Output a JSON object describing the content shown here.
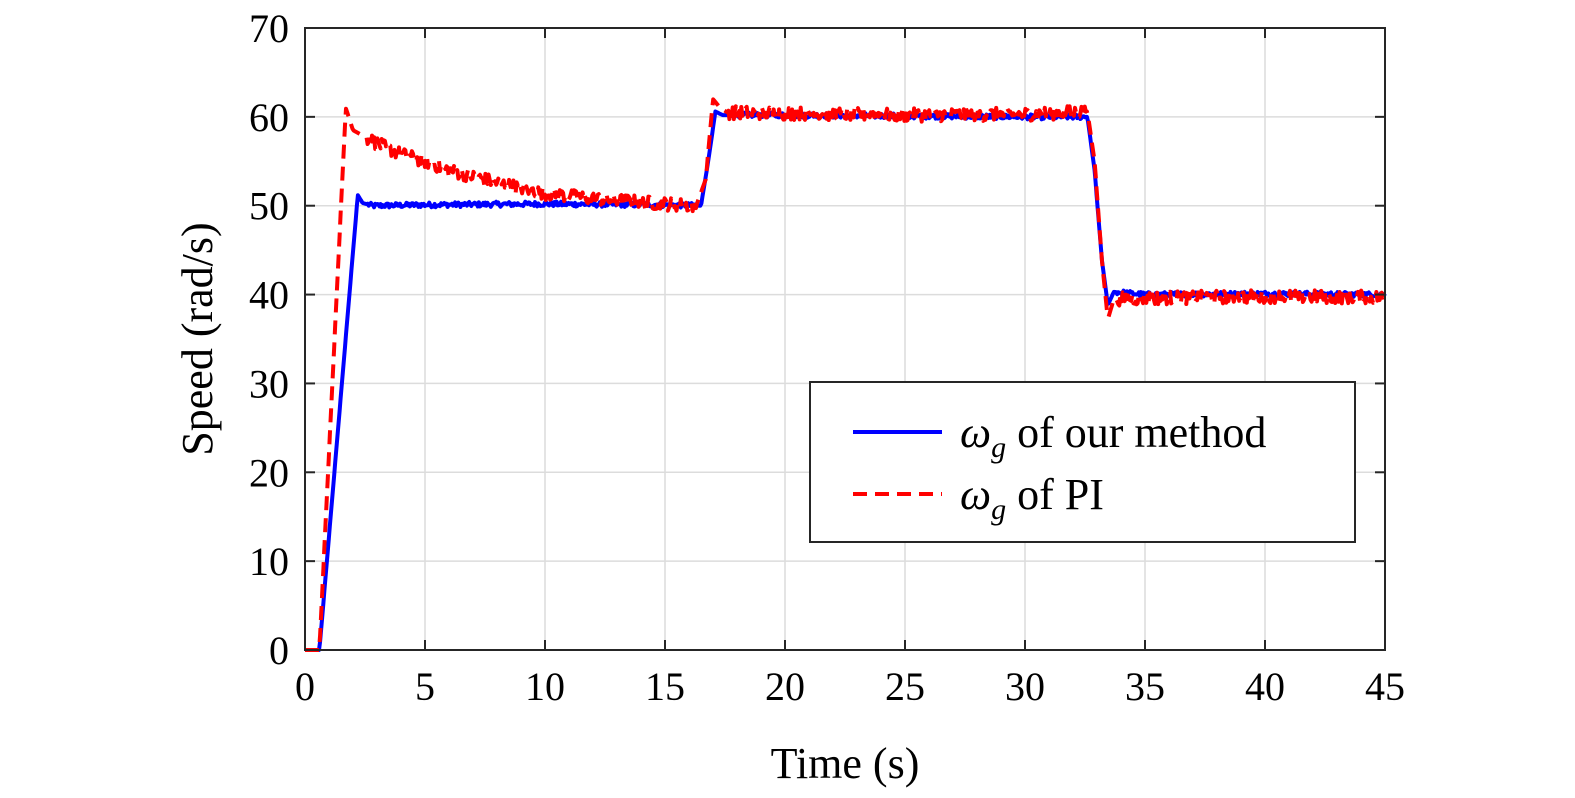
{
  "chart_data": {
    "type": "line",
    "title": "",
    "xlabel": "Time (s)",
    "ylabel": "Speed (rad/s)",
    "xlim": [
      0,
      45
    ],
    "ylim": [
      0,
      70
    ],
    "xticks": [
      0,
      5,
      10,
      15,
      20,
      25,
      30,
      35,
      40,
      45
    ],
    "yticks": [
      0,
      10,
      20,
      30,
      40,
      50,
      60,
      70
    ],
    "grid": true,
    "legend_position": "right-center",
    "series": [
      {
        "name": "ω_g of our method",
        "legend_symbol": "ω",
        "legend_subscript": "g",
        "legend_suffix": "of our method",
        "color": "#0000ff",
        "style": "solid",
        "x": [
          0,
          0.6,
          2.2,
          2.4,
          2.8,
          5,
          10,
          15,
          16.5,
          16.8,
          17.1,
          17.4,
          20,
          25,
          30,
          32.6,
          32.9,
          33.2,
          33.45,
          33.7,
          35,
          40,
          45
        ],
        "y": [
          0,
          0,
          51.2,
          50.3,
          50.0,
          50.1,
          50.2,
          50.1,
          50.0,
          55,
          60.6,
          60.2,
          60.2,
          60.1,
          60.0,
          60.0,
          54,
          44,
          38.8,
          40.3,
          40.0,
          40.1,
          40.0
        ]
      },
      {
        "name": "ω_g of PI",
        "legend_symbol": "ω",
        "legend_subscript": "g",
        "legend_suffix": "of PI",
        "color": "#ff0000",
        "style": "dashed",
        "x": [
          0,
          0.6,
          1.7,
          2.0,
          3,
          4,
          5,
          6,
          8,
          10,
          12,
          14,
          15,
          16.3,
          16.7,
          17.0,
          17.3,
          17.6,
          20,
          25,
          30,
          32.6,
          32.9,
          33.2,
          33.45,
          33.7,
          35,
          40,
          45
        ],
        "y": [
          0,
          0,
          61.0,
          58.5,
          57.0,
          55.8,
          55.0,
          54.0,
          52.6,
          51.4,
          50.8,
          50.4,
          50.2,
          50.0,
          53,
          62.0,
          61.0,
          60.5,
          60.4,
          60.2,
          60.3,
          60.6,
          55,
          44,
          37.2,
          39.5,
          39.6,
          39.8,
          39.7
        ]
      }
    ]
  }
}
